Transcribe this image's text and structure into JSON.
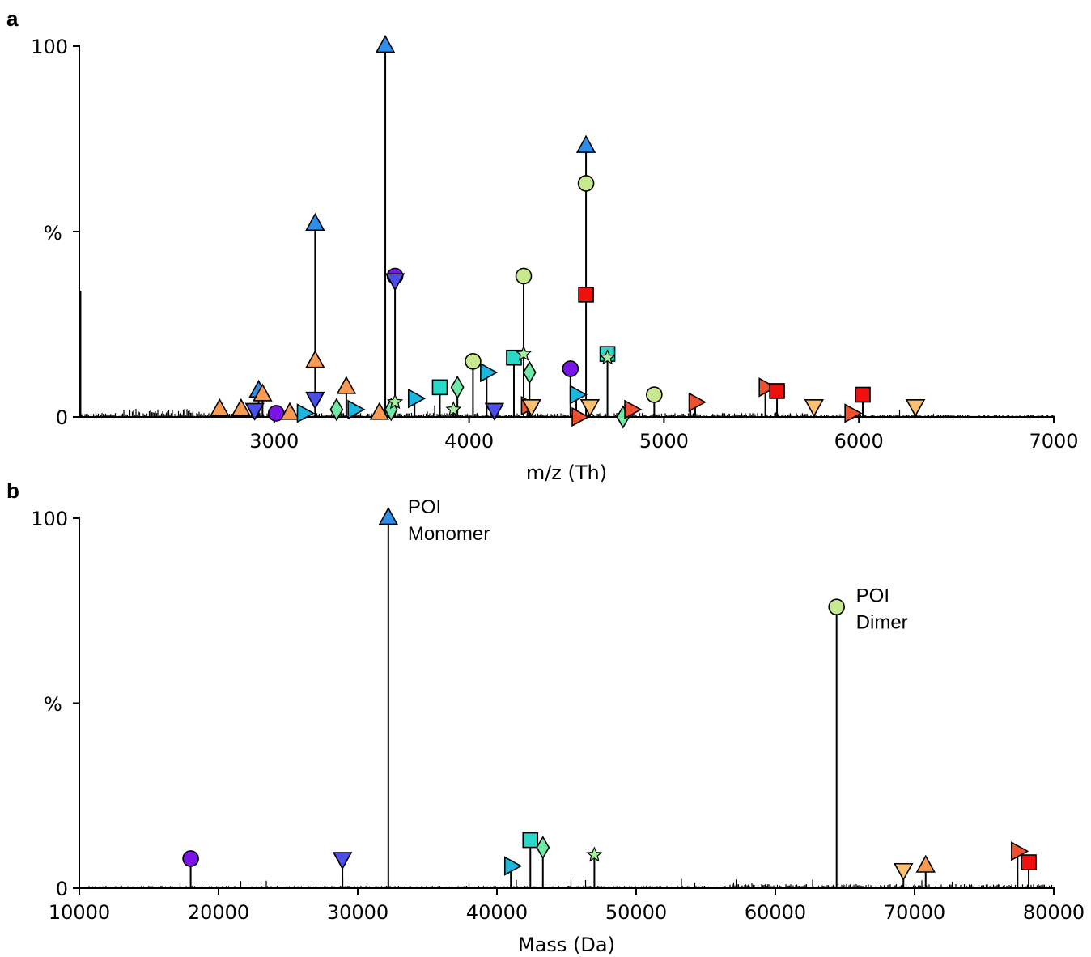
{
  "chart_data": [
    {
      "panel": "a",
      "type": "line",
      "xlabel": "m/z (Th)",
      "ylabel": "%",
      "xlim": [
        2000,
        7000
      ],
      "ylim": [
        0,
        100
      ],
      "xticks": [
        3000,
        4000,
        5000,
        6000,
        7000
      ],
      "yticks": [
        0,
        100
      ],
      "grid": false,
      "peaks": [
        {
          "x": 2006,
          "y": 34,
          "marker": "none",
          "color": ""
        },
        {
          "x": 2720,
          "y": 2,
          "marker": "triangle-up",
          "color": "#f89a52"
        },
        {
          "x": 2830,
          "y": 2,
          "marker": "triangle-up",
          "color": "#f89a52"
        },
        {
          "x": 2900,
          "y": 2,
          "marker": "triangle-down",
          "color": "#4b4de8"
        },
        {
          "x": 2920,
          "y": 7,
          "marker": "triangle-up",
          "color": "#2f8fe8"
        },
        {
          "x": 2940,
          "y": 6,
          "marker": "triangle-up",
          "color": "#f89a52"
        },
        {
          "x": 3010,
          "y": 1,
          "marker": "circle",
          "color": "#7a14e8"
        },
        {
          "x": 3080,
          "y": 1,
          "marker": "triangle-up",
          "color": "#f89a52"
        },
        {
          "x": 3150,
          "y": 1,
          "marker": "triangle-right",
          "color": "#1ab8e0"
        },
        {
          "x": 3210,
          "y": 52,
          "marker": "triangle-up",
          "color": "#2f8fe8"
        },
        {
          "x": 3210,
          "y": 15,
          "marker": "triangle-up",
          "color": "#f89a52"
        },
        {
          "x": 3210,
          "y": 5,
          "marker": "triangle-down",
          "color": "#4b4de8"
        },
        {
          "x": 3320,
          "y": 2,
          "marker": "diamond",
          "color": "#6fe8a8"
        },
        {
          "x": 3370,
          "y": 8,
          "marker": "triangle-up",
          "color": "#f89a52"
        },
        {
          "x": 3410,
          "y": 2,
          "marker": "triangle-right",
          "color": "#1ab8e0"
        },
        {
          "x": 3540,
          "y": 1,
          "marker": "triangle-up",
          "color": "#f89a52"
        },
        {
          "x": 3570,
          "y": 100,
          "marker": "triangle-up",
          "color": "#2f8fe8"
        },
        {
          "x": 3600,
          "y": 2,
          "marker": "diamond",
          "color": "#6fe8a8"
        },
        {
          "x": 3620,
          "y": 4,
          "marker": "star",
          "color": "#a8f0a0"
        },
        {
          "x": 3620,
          "y": 38,
          "marker": "circle",
          "color": "#7a14e8"
        },
        {
          "x": 3620,
          "y": 37,
          "marker": "triangle-down",
          "color": "#4b4de8"
        },
        {
          "x": 3720,
          "y": 5,
          "marker": "triangle-right",
          "color": "#1ab8e0"
        },
        {
          "x": 3850,
          "y": 8,
          "marker": "square",
          "color": "#2ad8c8"
        },
        {
          "x": 3920,
          "y": 2,
          "marker": "star",
          "color": "#a8f0a0"
        },
        {
          "x": 3940,
          "y": 8,
          "marker": "diamond",
          "color": "#6fe8a8"
        },
        {
          "x": 4020,
          "y": 15,
          "marker": "circle",
          "color": "#c8e890"
        },
        {
          "x": 4090,
          "y": 12,
          "marker": "triangle-right",
          "color": "#1ab8e0"
        },
        {
          "x": 4130,
          "y": 2,
          "marker": "triangle-down",
          "color": "#4b4de8"
        },
        {
          "x": 4230,
          "y": 16,
          "marker": "square",
          "color": "#2ad8c8"
        },
        {
          "x": 4280,
          "y": 17,
          "marker": "star",
          "color": "#a8f0a0"
        },
        {
          "x": 4280,
          "y": 38,
          "marker": "circle",
          "color": "#c8e890"
        },
        {
          "x": 4300,
          "y": 3,
          "marker": "triangle-right",
          "color": "#f0502e"
        },
        {
          "x": 4310,
          "y": 12,
          "marker": "diamond",
          "color": "#6fe8a8"
        },
        {
          "x": 4320,
          "y": 3,
          "marker": "triangle-down",
          "color": "#f8c070"
        },
        {
          "x": 4520,
          "y": 13,
          "marker": "circle",
          "color": "#7a14e8"
        },
        {
          "x": 4550,
          "y": 6,
          "marker": "triangle-right",
          "color": "#1ab8e0"
        },
        {
          "x": 4560,
          "y": 0,
          "marker": "triangle-right",
          "color": "#f0502e"
        },
        {
          "x": 4600,
          "y": 73,
          "marker": "triangle-up",
          "color": "#2f8fe8"
        },
        {
          "x": 4600,
          "y": 63,
          "marker": "circle",
          "color": "#c8e890"
        },
        {
          "x": 4600,
          "y": 33,
          "marker": "square",
          "color": "#f01010"
        },
        {
          "x": 4620,
          "y": 3,
          "marker": "triangle-down",
          "color": "#f8c070"
        },
        {
          "x": 4710,
          "y": 17,
          "marker": "square",
          "color": "#2ad8c8"
        },
        {
          "x": 4710,
          "y": 16,
          "marker": "star",
          "color": "#a8f0a0"
        },
        {
          "x": 4790,
          "y": 0,
          "marker": "diamond",
          "color": "#6fe8a8"
        },
        {
          "x": 4830,
          "y": 2,
          "marker": "triangle-right",
          "color": "#f0502e"
        },
        {
          "x": 4950,
          "y": 6,
          "marker": "circle",
          "color": "#c8e890"
        },
        {
          "x": 5160,
          "y": 4,
          "marker": "triangle-right",
          "color": "#f0502e"
        },
        {
          "x": 5520,
          "y": 8,
          "marker": "triangle-right",
          "color": "#f0502e"
        },
        {
          "x": 5580,
          "y": 7,
          "marker": "square",
          "color": "#f01010"
        },
        {
          "x": 5770,
          "y": 3,
          "marker": "triangle-down",
          "color": "#f8c070"
        },
        {
          "x": 5960,
          "y": 1,
          "marker": "triangle-right",
          "color": "#f0502e"
        },
        {
          "x": 6020,
          "y": 6,
          "marker": "square",
          "color": "#f01010"
        },
        {
          "x": 6290,
          "y": 3,
          "marker": "triangle-down",
          "color": "#f8c070"
        }
      ]
    },
    {
      "panel": "b",
      "type": "line",
      "xlabel": "Mass (Da)",
      "ylabel": "%",
      "xlim": [
        10000,
        80000
      ],
      "ylim": [
        0,
        100
      ],
      "xticks": [
        10000,
        20000,
        30000,
        40000,
        50000,
        60000,
        70000,
        80000
      ],
      "yticks": [
        0,
        100
      ],
      "grid": false,
      "peaks": [
        {
          "x": 18000,
          "y": 8,
          "marker": "circle",
          "color": "#7a14e8"
        },
        {
          "x": 28900,
          "y": 8,
          "marker": "triangle-down",
          "color": "#4b4de8"
        },
        {
          "x": 32200,
          "y": 100,
          "marker": "triangle-up",
          "color": "#2f8fe8"
        },
        {
          "x": 41000,
          "y": 6,
          "marker": "triangle-right",
          "color": "#1ab8e0"
        },
        {
          "x": 42400,
          "y": 13,
          "marker": "square",
          "color": "#2ad8c8"
        },
        {
          "x": 43300,
          "y": 11,
          "marker": "diamond",
          "color": "#6fe8a8"
        },
        {
          "x": 47000,
          "y": 9,
          "marker": "star",
          "color": "#a8f0a0"
        },
        {
          "x": 64400,
          "y": 76,
          "marker": "circle",
          "color": "#c8e890"
        },
        {
          "x": 69200,
          "y": 5,
          "marker": "triangle-down",
          "color": "#f8c070"
        },
        {
          "x": 70800,
          "y": 6,
          "marker": "triangle-up",
          "color": "#f89a52"
        },
        {
          "x": 77400,
          "y": 10,
          "marker": "triangle-right",
          "color": "#f0502e"
        },
        {
          "x": 78200,
          "y": 7,
          "marker": "square",
          "color": "#f01010"
        }
      ],
      "annotations": [
        {
          "lines": [
            "POI",
            "Monomer"
          ],
          "x": 32200,
          "y": 100
        },
        {
          "lines": [
            "POI",
            "Dimer"
          ],
          "x": 64400,
          "y": 76
        }
      ]
    }
  ]
}
